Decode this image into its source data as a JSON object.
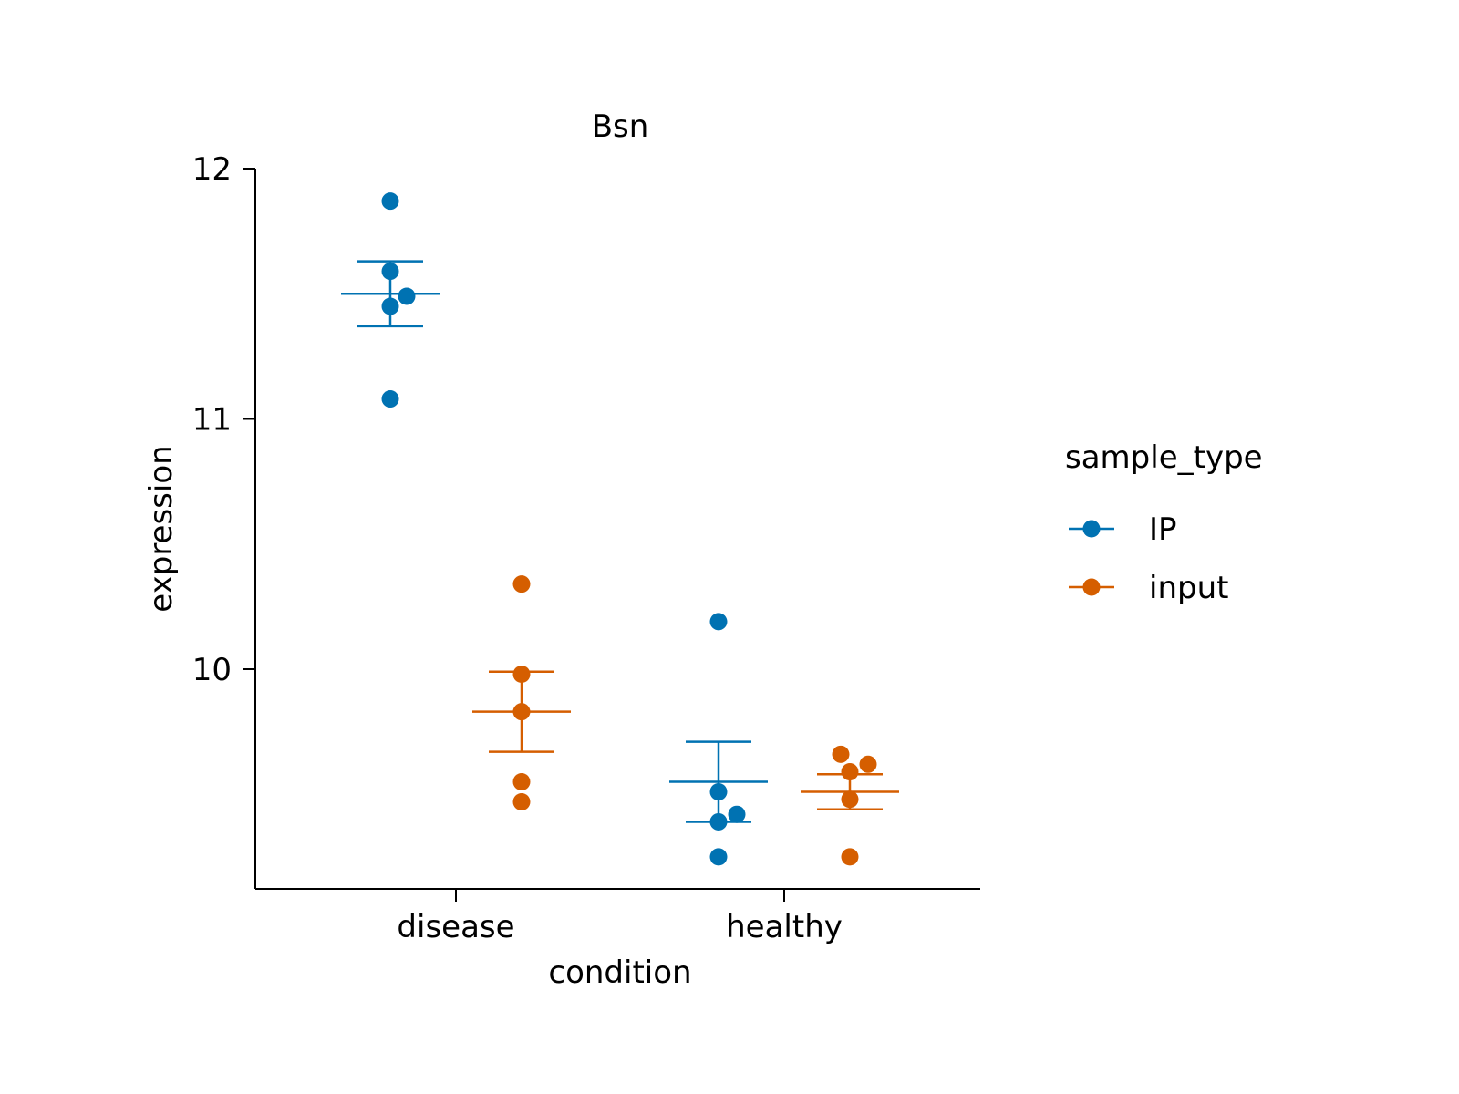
{
  "chart_data": {
    "type": "scatter",
    "title": "Bsn",
    "xlabel": "condition",
    "ylabel": "expression",
    "categories": [
      "disease",
      "healthy"
    ],
    "ylim": [
      9.13,
      12.0
    ],
    "yticks": [
      10,
      11,
      12
    ],
    "grid": false,
    "legend": {
      "title": "sample_type",
      "position": "right"
    },
    "series": [
      {
        "name": "IP",
        "color": "#0072B2",
        "points": [
          {
            "x": "disease",
            "y": 11.87
          },
          {
            "x": "disease",
            "y": 11.59
          },
          {
            "x": "disease",
            "y": 11.49
          },
          {
            "x": "disease",
            "y": 11.45
          },
          {
            "x": "disease",
            "y": 11.08
          },
          {
            "x": "healthy",
            "y": 10.19
          },
          {
            "x": "healthy",
            "y": 9.51
          },
          {
            "x": "healthy",
            "y": 9.42
          },
          {
            "x": "healthy",
            "y": 9.39
          },
          {
            "x": "healthy",
            "y": 9.25
          }
        ],
        "summary": [
          {
            "x": "disease",
            "mean": 11.5,
            "lower": 11.37,
            "upper": 11.63
          },
          {
            "x": "healthy",
            "mean": 9.55,
            "lower": 9.39,
            "upper": 9.71
          }
        ]
      },
      {
        "name": "input",
        "color": "#D55E00",
        "points": [
          {
            "x": "disease",
            "y": 10.34
          },
          {
            "x": "disease",
            "y": 9.98
          },
          {
            "x": "disease",
            "y": 9.83
          },
          {
            "x": "disease",
            "y": 9.55
          },
          {
            "x": "disease",
            "y": 9.47
          },
          {
            "x": "healthy",
            "y": 9.66
          },
          {
            "x": "healthy",
            "y": 9.62
          },
          {
            "x": "healthy",
            "y": 9.59
          },
          {
            "x": "healthy",
            "y": 9.48
          },
          {
            "x": "healthy",
            "y": 9.25
          }
        ],
        "summary": [
          {
            "x": "disease",
            "mean": 9.83,
            "lower": 9.67,
            "upper": 9.99
          },
          {
            "x": "healthy",
            "mean": 9.51,
            "lower": 9.44,
            "upper": 9.58
          }
        ]
      }
    ]
  }
}
